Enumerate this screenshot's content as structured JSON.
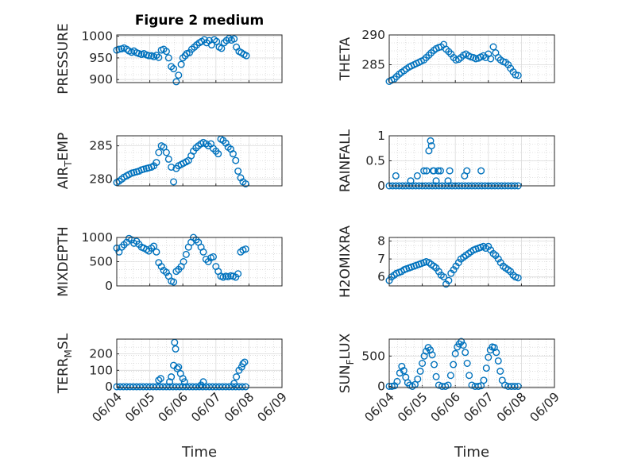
{
  "figure": {
    "title": "Figure 2 medium",
    "xlabel": "Time"
  },
  "colors": {
    "marker": "#0072BD",
    "grid": "#c8c8c8",
    "axis": "#262626",
    "background": "#ffffff"
  },
  "x_ticks": [
    "06/04",
    "06/05",
    "06/06",
    "06/07",
    "06/08",
    "06/09"
  ],
  "chart_data": [
    {
      "type": "scatter",
      "ylabel": "PRESSURE",
      "ylim": [
        893,
        1003
      ],
      "yticks": [
        "900",
        "950",
        "1000"
      ],
      "grid": true,
      "x": [
        0,
        0.07,
        0.15,
        0.22,
        0.3,
        0.37,
        0.45,
        0.52,
        0.6,
        0.67,
        0.75,
        0.82,
        0.9,
        0.97,
        1.05,
        1.12,
        1.2,
        1.27,
        1.35,
        1.42,
        1.5,
        1.57,
        1.65,
        1.72,
        1.8,
        1.87,
        1.95,
        2.0,
        2.07,
        2.12,
        2.2,
        2.27,
        2.35,
        2.42,
        2.5,
        2.57,
        2.65,
        2.72,
        2.8,
        2.87,
        2.95,
        3.02,
        3.1,
        3.17,
        3.25,
        3.32,
        3.4,
        3.47,
        3.55,
        3.62,
        3.7,
        3.77,
        3.85,
        3.92
      ],
      "y": [
        968,
        970,
        971,
        973,
        970,
        966,
        963,
        966,
        962,
        960,
        958,
        960,
        957,
        955,
        955,
        953,
        956,
        951,
        968,
        970,
        965,
        950,
        930,
        925,
        895,
        910,
        935,
        950,
        955,
        960,
        962,
        970,
        975,
        980,
        985,
        988,
        992,
        985,
        990,
        980,
        992,
        988,
        975,
        972,
        985,
        990,
        995,
        991,
        994,
        975,
        965,
        962,
        958,
        955
      ]
    },
    {
      "type": "scatter",
      "ylabel": "THETA",
      "ylim": [
        282,
        290
      ],
      "yticks": [
        "285",
        "290"
      ],
      "grid": true,
      "x": [
        0,
        0.07,
        0.15,
        0.22,
        0.3,
        0.37,
        0.45,
        0.52,
        0.6,
        0.67,
        0.75,
        0.82,
        0.9,
        0.97,
        1.05,
        1.12,
        1.2,
        1.27,
        1.35,
        1.42,
        1.5,
        1.57,
        1.65,
        1.72,
        1.8,
        1.87,
        1.95,
        2.02,
        2.1,
        2.17,
        2.25,
        2.32,
        2.4,
        2.47,
        2.55,
        2.62,
        2.7,
        2.77,
        2.85,
        2.92,
        3.0,
        3.07,
        3.15,
        3.22,
        3.3,
        3.37,
        3.45,
        3.52,
        3.6,
        3.67,
        3.75,
        3.82,
        3.9
      ],
      "y": [
        282.2,
        282.4,
        282.6,
        283.0,
        283.4,
        283.7,
        284.0,
        284.3,
        284.6,
        284.8,
        285.0,
        285.2,
        285.4,
        285.6,
        285.8,
        286.2,
        286.6,
        287.0,
        287.4,
        287.7,
        287.9,
        288.0,
        288.4,
        287.6,
        287.2,
        286.8,
        286.2,
        285.8,
        285.9,
        286.2,
        286.6,
        286.8,
        286.5,
        286.3,
        286.2,
        286.0,
        286.1,
        286.3,
        286.5,
        286.2,
        286.8,
        286.0,
        288.0,
        287.0,
        286.2,
        285.8,
        285.5,
        285.4,
        285.0,
        284.4,
        283.8,
        283.3,
        283.2
      ]
    },
    {
      "type": "scatter",
      "ylabel": "AIR_TEMP",
      "ylim": [
        279,
        286.5
      ],
      "yticks": [
        "280",
        "285"
      ],
      "grid": true,
      "x": [
        0,
        0.07,
        0.15,
        0.22,
        0.3,
        0.37,
        0.45,
        0.52,
        0.6,
        0.67,
        0.75,
        0.82,
        0.9,
        0.97,
        1.05,
        1.12,
        1.2,
        1.27,
        1.35,
        1.42,
        1.5,
        1.57,
        1.65,
        1.72,
        1.8,
        1.87,
        1.95,
        2.02,
        2.1,
        2.17,
        2.25,
        2.32,
        2.4,
        2.47,
        2.55,
        2.62,
        2.7,
        2.77,
        2.85,
        2.92,
        3.0,
        3.07,
        3.15,
        3.22,
        3.3,
        3.37,
        3.45,
        3.52,
        3.6,
        3.67,
        3.75,
        3.82,
        3.9
      ],
      "y": [
        279.5,
        279.7,
        280.0,
        280.3,
        280.5,
        280.7,
        280.9,
        281.0,
        281.1,
        281.2,
        281.4,
        281.5,
        281.6,
        281.7,
        281.8,
        282.0,
        282.5,
        284.0,
        285.0,
        284.8,
        284.0,
        283.0,
        281.8,
        279.6,
        281.6,
        282.0,
        282.2,
        282.4,
        282.6,
        282.8,
        283.5,
        284.2,
        284.7,
        285.0,
        285.3,
        285.5,
        285.3,
        285.0,
        285.3,
        284.6,
        284.2,
        283.8,
        286.0,
        285.8,
        285.4,
        284.8,
        284.5,
        283.8,
        282.8,
        281.2,
        280.2,
        279.6,
        279.3
      ]
    },
    {
      "type": "scatter",
      "ylabel": "RAINFALL",
      "ylim": [
        0,
        1
      ],
      "yticks": [
        "0",
        "0.5",
        "1"
      ],
      "grid": true,
      "x": [
        0,
        0.1,
        0.2,
        0.3,
        0.4,
        0.5,
        0.6,
        0.7,
        0.8,
        0.9,
        1.0,
        1.1,
        1.2,
        1.3,
        1.4,
        1.5,
        1.6,
        1.7,
        1.8,
        1.9,
        2.0,
        2.1,
        2.2,
        2.3,
        2.4,
        2.5,
        2.6,
        2.7,
        2.8,
        2.9,
        3.0,
        3.1,
        3.2,
        3.3,
        3.4,
        3.5,
        3.6,
        3.7,
        3.8,
        3.9,
        0.2,
        0.65,
        0.85,
        1.05,
        1.13,
        1.2,
        1.25,
        1.28,
        1.33,
        1.35,
        1.42,
        1.48,
        1.55,
        1.78,
        1.83,
        2.28,
        2.35,
        2.78
      ],
      "y": [
        0,
        0,
        0,
        0,
        0,
        0,
        0,
        0,
        0,
        0,
        0,
        0,
        0,
        0,
        0,
        0,
        0,
        0,
        0,
        0,
        0,
        0,
        0,
        0,
        0,
        0,
        0,
        0,
        0,
        0,
        0,
        0,
        0,
        0,
        0,
        0,
        0,
        0,
        0,
        0,
        0.2,
        0.1,
        0.2,
        0.3,
        0.3,
        0.7,
        0.9,
        0.8,
        0.3,
        0.3,
        0.1,
        0.3,
        0.3,
        0.1,
        0.3,
        0.2,
        0.3,
        0.3
      ]
    },
    {
      "type": "scatter",
      "ylabel": "MIXDEPTH",
      "ylim": [
        0,
        1000
      ],
      "yticks": [
        "0",
        "500",
        "1000"
      ],
      "grid": true,
      "x": [
        0,
        0.07,
        0.15,
        0.22,
        0.3,
        0.37,
        0.45,
        0.52,
        0.6,
        0.67,
        0.75,
        0.82,
        0.9,
        0.97,
        1.05,
        1.12,
        1.2,
        1.27,
        1.35,
        1.42,
        1.5,
        1.57,
        1.65,
        1.72,
        1.8,
        1.87,
        1.95,
        2.02,
        2.1,
        2.17,
        2.25,
        2.32,
        2.4,
        2.47,
        2.55,
        2.62,
        2.7,
        2.77,
        2.85,
        2.92,
        3.0,
        3.07,
        3.15,
        3.22,
        3.3,
        3.37,
        3.45,
        3.52,
        3.6,
        3.67,
        3.75,
        3.82,
        3.9
      ],
      "y": [
        780,
        700,
        800,
        850,
        900,
        980,
        950,
        880,
        920,
        860,
        800,
        780,
        750,
        720,
        780,
        820,
        700,
        480,
        400,
        320,
        280,
        200,
        100,
        80,
        300,
        340,
        400,
        500,
        650,
        800,
        900,
        1000,
        950,
        900,
        800,
        700,
        550,
        500,
        580,
        600,
        400,
        300,
        200,
        180,
        200,
        190,
        210,
        200,
        180,
        250,
        700,
        740,
        760
      ]
    },
    {
      "type": "scatter",
      "ylabel": "H2OMIXRA",
      "ylim": [
        5.5,
        8.2
      ],
      "yticks": [
        "6",
        "7",
        "8"
      ],
      "grid": true,
      "x": [
        0,
        0.07,
        0.15,
        0.22,
        0.3,
        0.37,
        0.45,
        0.52,
        0.6,
        0.67,
        0.75,
        0.82,
        0.9,
        0.97,
        1.05,
        1.12,
        1.2,
        1.27,
        1.35,
        1.42,
        1.5,
        1.57,
        1.65,
        1.72,
        1.8,
        1.87,
        1.95,
        2.02,
        2.1,
        2.17,
        2.25,
        2.32,
        2.4,
        2.47,
        2.55,
        2.62,
        2.7,
        2.77,
        2.85,
        2.92,
        3.0,
        3.07,
        3.15,
        3.22,
        3.3,
        3.37,
        3.45,
        3.52,
        3.6,
        3.67,
        3.75,
        3.82,
        3.9
      ],
      "y": [
        5.8,
        6.0,
        6.1,
        6.2,
        6.25,
        6.3,
        6.4,
        6.45,
        6.5,
        6.55,
        6.6,
        6.65,
        6.7,
        6.75,
        6.8,
        6.85,
        6.8,
        6.7,
        6.6,
        6.5,
        6.3,
        6.1,
        6.0,
        5.6,
        5.8,
        6.2,
        6.4,
        6.6,
        6.8,
        7.0,
        7.1,
        7.2,
        7.3,
        7.4,
        7.5,
        7.55,
        7.6,
        7.65,
        7.7,
        7.6,
        7.7,
        7.5,
        7.3,
        7.2,
        7.0,
        6.8,
        6.6,
        6.5,
        6.4,
        6.3,
        6.1,
        6.0,
        5.95
      ]
    },
    {
      "type": "scatter",
      "ylabel": "TERR_MSL",
      "ylim": [
        -5,
        290
      ],
      "yticks": [
        "0",
        "100",
        "200"
      ],
      "grid": true,
      "x": [
        0,
        0.1,
        0.2,
        0.3,
        0.4,
        0.5,
        0.6,
        0.7,
        0.8,
        0.9,
        1.0,
        1.1,
        1.2,
        1.3,
        1.4,
        1.5,
        1.6,
        1.7,
        1.8,
        1.9,
        2.0,
        2.1,
        2.2,
        2.3,
        2.4,
        2.5,
        2.6,
        2.7,
        2.8,
        2.9,
        3.0,
        3.1,
        3.2,
        3.3,
        3.4,
        3.5,
        3.6,
        3.7,
        3.8,
        3.9,
        1.27,
        1.33,
        1.6,
        1.65,
        1.72,
        1.75,
        1.78,
        1.83,
        1.87,
        1.93,
        2.0,
        2.05,
        2.55,
        2.62,
        3.55,
        3.62,
        3.7,
        3.78,
        3.82,
        3.87
      ],
      "y": [
        0,
        0,
        0,
        0,
        0,
        0,
        0,
        0,
        0,
        0,
        0,
        0,
        0,
        0,
        0,
        0,
        0,
        0,
        0,
        0,
        0,
        0,
        0,
        0,
        0,
        0,
        0,
        0,
        0,
        0,
        0,
        0,
        0,
        0,
        0,
        0,
        0,
        0,
        0,
        0,
        40,
        50,
        30,
        60,
        130,
        270,
        230,
        110,
        120,
        80,
        50,
        30,
        10,
        30,
        20,
        60,
        100,
        120,
        140,
        150
      ]
    },
    {
      "type": "scatter",
      "ylabel": "SUN_FLUX",
      "ylim": [
        -20,
        780
      ],
      "yticks": [
        "0",
        "500"
      ],
      "grid": true,
      "x": [
        0,
        0.08,
        0.16,
        0.24,
        0.32,
        0.38,
        0.44,
        0.5,
        0.56,
        0.62,
        0.7,
        0.78,
        0.86,
        0.94,
        1.0,
        1.06,
        1.12,
        1.18,
        1.24,
        1.3,
        1.36,
        1.42,
        1.5,
        1.6,
        1.7,
        1.78,
        1.86,
        1.94,
        2.0,
        2.06,
        2.12,
        2.18,
        2.24,
        2.3,
        2.36,
        2.42,
        2.5,
        2.6,
        2.7,
        2.78,
        2.86,
        2.94,
        3.0,
        3.06,
        3.12,
        3.18,
        3.24,
        3.3,
        3.36,
        3.42,
        3.5,
        3.6,
        3.7,
        3.8,
        3.9
      ],
      "y": [
        0,
        0,
        10,
        80,
        220,
        330,
        260,
        150,
        60,
        20,
        0,
        30,
        120,
        250,
        380,
        500,
        580,
        640,
        600,
        520,
        360,
        160,
        20,
        0,
        0,
        20,
        180,
        360,
        540,
        650,
        700,
        740,
        680,
        560,
        380,
        180,
        20,
        0,
        0,
        10,
        100,
        300,
        480,
        600,
        650,
        640,
        560,
        420,
        250,
        100,
        20,
        0,
        0,
        0,
        0
      ]
    }
  ]
}
